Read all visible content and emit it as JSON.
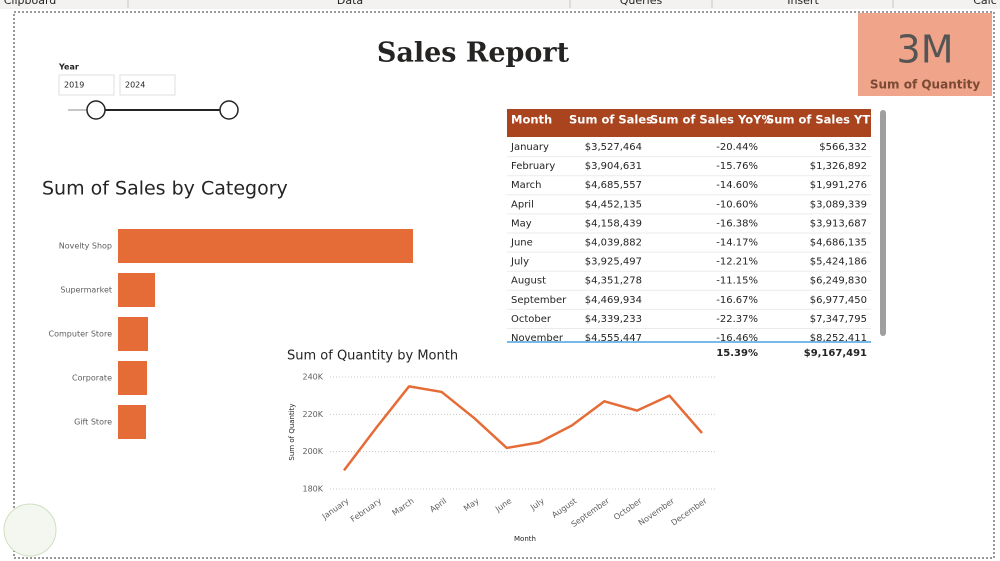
{
  "ribbon": {
    "groups": [
      "Clipboard",
      "Data",
      "Queries",
      "Insert",
      "Calc"
    ]
  },
  "title": "Sales Report",
  "slicer": {
    "title": "Year",
    "from": "2019",
    "to": "2024"
  },
  "card": {
    "value": "3M",
    "label": "Sum of Quantity"
  },
  "table": {
    "columns": [
      "Month",
      "Sum of Sales",
      "Sum of Sales YoY%",
      "Sum of Sales YTD"
    ],
    "rows": [
      [
        "January",
        "$3,527,464",
        "-20.44%",
        "$566,332"
      ],
      [
        "February",
        "$3,904,631",
        "-15.76%",
        "$1,326,892"
      ],
      [
        "March",
        "$4,685,557",
        "-14.60%",
        "$1,991,276"
      ],
      [
        "April",
        "$4,452,135",
        "-10.60%",
        "$3,089,339"
      ],
      [
        "May",
        "$4,158,439",
        "-16.38%",
        "$3,913,687"
      ],
      [
        "June",
        "$4,039,882",
        "-14.17%",
        "$4,686,135"
      ],
      [
        "July",
        "$3,925,497",
        "-12.21%",
        "$5,424,186"
      ],
      [
        "August",
        "$4,351,278",
        "-11.15%",
        "$6,249,830"
      ],
      [
        "September",
        "$4,469,934",
        "-16.67%",
        "$6,977,450"
      ],
      [
        "October",
        "$4,339,233",
        "-22.37%",
        "$7,347,795"
      ],
      [
        "November",
        "$4,555,447",
        "-16.46%",
        "$8,252,411"
      ]
    ],
    "total": {
      "yoy": "15.39%",
      "ytd": "$9,167,491"
    }
  },
  "chart_data": [
    {
      "type": "bar",
      "orientation": "horizontal",
      "title": "Sum of Sales by Category",
      "categories": [
        "Novelty Shop",
        "Supermarket",
        "Computer Store",
        "Corporate",
        "Gift Store"
      ],
      "values": [
        29500000,
        3700000,
        3000000,
        2900000,
        2800000
      ],
      "color": "#e66c37",
      "xlim": [
        0,
        30000000
      ]
    },
    {
      "type": "line",
      "title": "Sum of Quantity by Month",
      "x_label": "Month",
      "y_label": "Sum of Quantity",
      "categories": [
        "January",
        "February",
        "March",
        "April",
        "May",
        "June",
        "July",
        "August",
        "September",
        "October",
        "November",
        "December"
      ],
      "values": [
        190000,
        213000,
        235000,
        232000,
        218000,
        202000,
        205000,
        214000,
        227000,
        222000,
        230000,
        210000
      ],
      "color": "#e66c37",
      "ylim": [
        180000,
        240000
      ],
      "yticks": [
        {
          "value": 180000,
          "label": "180K"
        },
        {
          "value": 200000,
          "label": "200K"
        },
        {
          "value": 220000,
          "label": "220K"
        },
        {
          "value": 240000,
          "label": "240K"
        }
      ],
      "grid": true
    }
  ]
}
